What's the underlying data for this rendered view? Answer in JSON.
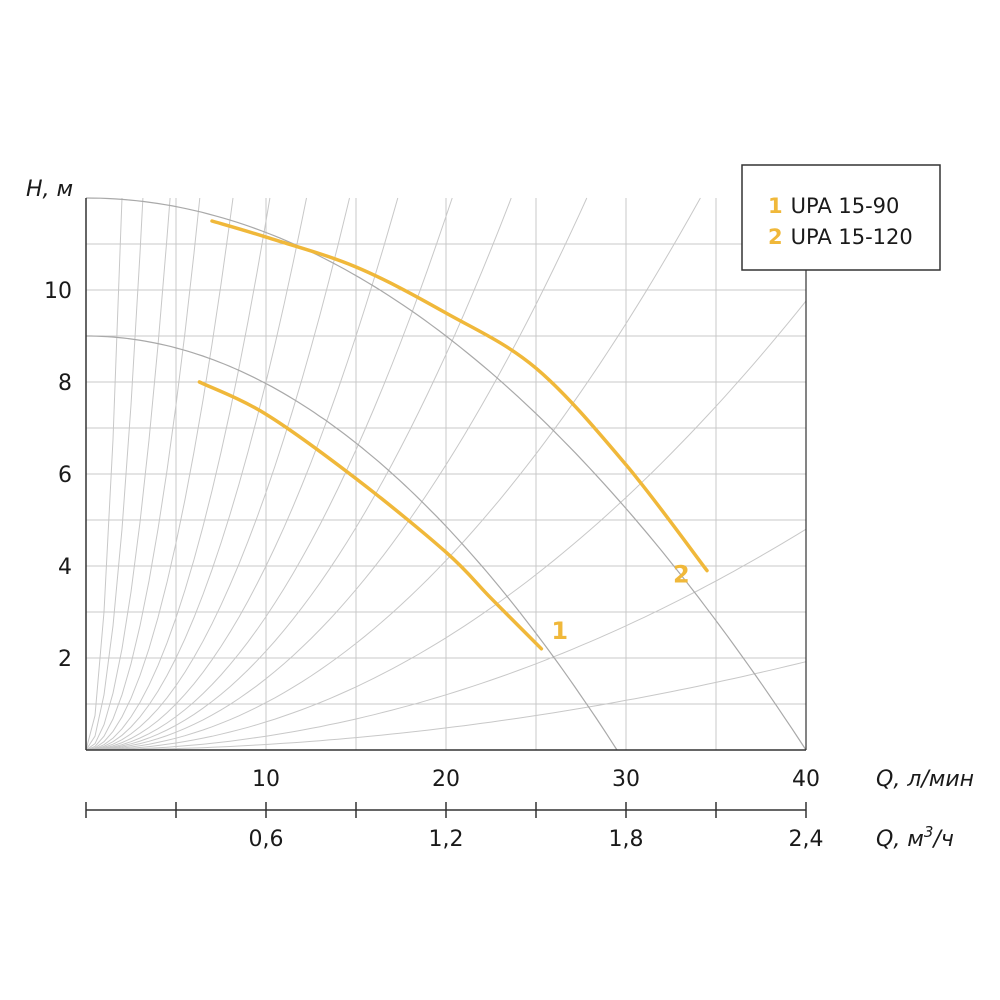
{
  "colors": {
    "accent": "#f0b83a",
    "grid": "#c8c8c8",
    "axis": "#333333",
    "frame": "#333333"
  },
  "chart_data": {
    "type": "line",
    "title": "",
    "xlabel": "Q, л/мин",
    "x2label_prefix": "Q, м",
    "x2label_sup": "3",
    "x2label_suffix": "/ч",
    "ylabel": "H, м",
    "xlim": [
      0,
      40
    ],
    "ylim": [
      0,
      12
    ],
    "x_ticks": [
      10,
      20,
      30,
      40
    ],
    "x_tick_labels": [
      "10",
      "20",
      "30",
      "40"
    ],
    "x2_ticks": [
      0.6,
      1.2,
      1.8,
      2.4
    ],
    "x2_tick_labels": [
      "0,6",
      "1,2",
      "1,8",
      "2,4"
    ],
    "x2_minor": [
      0.3,
      0.9,
      1.5,
      2.1
    ],
    "y_ticks": [
      2,
      4,
      6,
      8,
      10
    ],
    "y_tick_labels": [
      "2",
      "4",
      "6",
      "8",
      "10"
    ],
    "grid": true,
    "legend_position": "top-right",
    "legend": [
      {
        "num": "1",
        "label": "UPA 15-90"
      },
      {
        "num": "2",
        "label": "UPA 15-120"
      }
    ],
    "series": [
      {
        "name": "UPA 15-90",
        "marker_label": "1",
        "points": [
          [
            6.3,
            8.0
          ],
          [
            10,
            7.3
          ],
          [
            15,
            5.9
          ],
          [
            20,
            4.3
          ],
          [
            22.5,
            3.3
          ],
          [
            25.3,
            2.2
          ]
        ]
      },
      {
        "name": "UPA 15-120",
        "marker_label": "2",
        "points": [
          [
            7,
            11.5
          ],
          [
            10,
            11.15
          ],
          [
            15,
            10.5
          ],
          [
            20,
            9.5
          ],
          [
            25,
            8.3
          ],
          [
            30,
            6.2
          ],
          [
            34.5,
            3.9
          ]
        ]
      }
    ],
    "max_curves": [
      {
        "h0": 12,
        "qmax": 40
      },
      {
        "h0": 9,
        "qmax": 29.5
      }
    ]
  }
}
